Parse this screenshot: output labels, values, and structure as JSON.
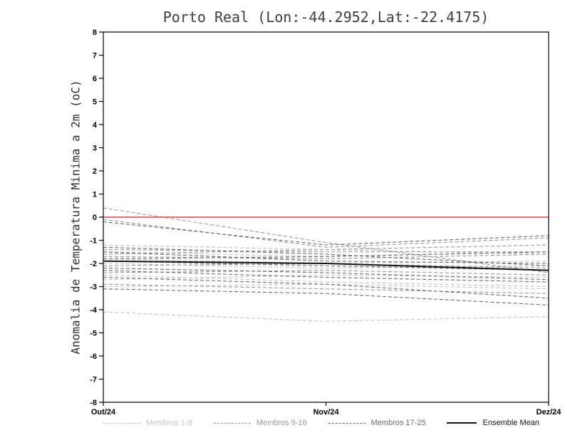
{
  "chart_data": {
    "type": "line",
    "title": "Porto Real (Lon:-44.2952,Lat:-22.4175)",
    "ylabel": "Anomalia de Temperatura Minima a 2m (oC)",
    "x_categories": [
      "Out/24",
      "Nov/24",
      "Dez/24"
    ],
    "ylim": [
      -8,
      8
    ],
    "ytick_labels": [
      "8",
      "7",
      "6",
      "5",
      "4",
      "3",
      "2",
      "1",
      "0",
      "-1",
      "-2",
      "-3",
      "-4",
      "-5",
      "-6",
      "-7",
      "-8"
    ],
    "grid": false,
    "zero_line": {
      "y": 0,
      "color": "#f23b3b"
    },
    "groups": [
      {
        "name": "Membros 1-8",
        "color": "#c4c4c4",
        "style": "dashed",
        "members": [
          [
            -1.5,
            -1.7,
            -1.5
          ],
          [
            -2.5,
            -2.8,
            -3.0
          ],
          [
            -3.0,
            -2.9,
            -3.1
          ],
          [
            -4.1,
            -4.5,
            -4.3
          ],
          [
            -1.2,
            -1.4,
            -1.6
          ],
          [
            -2.0,
            -2.2,
            -2.1
          ],
          [
            -2.7,
            -2.5,
            -2.6
          ],
          [
            -1.8,
            -2.0,
            -1.9
          ]
        ]
      },
      {
        "name": "Membros 9-16",
        "color": "#9a9a9a",
        "style": "dashed",
        "members": [
          [
            0.4,
            -1.1,
            -2.4
          ],
          [
            -0.1,
            -1.3,
            -0.9
          ],
          [
            -1.4,
            -1.5,
            -1.5
          ],
          [
            -1.7,
            -1.8,
            -1.6
          ],
          [
            -2.1,
            -2.0,
            -2.2
          ],
          [
            -2.4,
            -2.3,
            -2.5
          ],
          [
            -1.6,
            -1.4,
            -1.2
          ],
          [
            -2.9,
            -3.1,
            -3.3
          ]
        ]
      },
      {
        "name": "Membros 17-25",
        "color": "#6b6b6b",
        "style": "dashed",
        "members": [
          [
            -0.2,
            -1.2,
            -0.8
          ],
          [
            -1.3,
            -1.6,
            -2.1
          ],
          [
            -1.9,
            -2.1,
            -2.3
          ],
          [
            -2.2,
            -2.4,
            -2.7
          ],
          [
            -2.6,
            -2.9,
            -3.5
          ],
          [
            -3.1,
            -3.3,
            -3.8
          ],
          [
            -1.5,
            -1.9,
            -2.0
          ],
          [
            -1.8,
            -1.7,
            -1.5
          ],
          [
            -2.3,
            -2.6,
            -2.8
          ]
        ]
      }
    ],
    "ensemble_mean": {
      "name": "Ensemble Mean",
      "color": "#141414",
      "style": "solid",
      "values": [
        -1.9,
        -2.0,
        -2.3
      ]
    },
    "legend": [
      {
        "label": "Membros 1-8",
        "color": "#c4c4c4",
        "style": "dashed"
      },
      {
        "label": "Membros 9-16",
        "color": "#9a9a9a",
        "style": "dashed"
      },
      {
        "label": "Membros 17-25",
        "color": "#6b6b6b",
        "style": "dashed"
      },
      {
        "label": "Ensemble Mean",
        "color": "#141414",
        "style": "solid"
      }
    ]
  }
}
